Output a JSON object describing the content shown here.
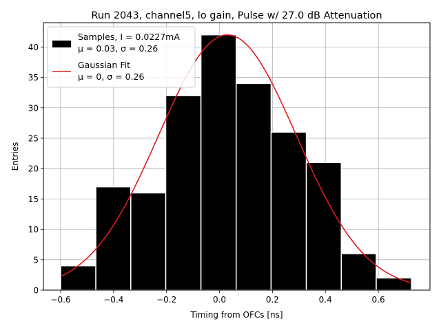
{
  "chart_data": {
    "type": "bar",
    "title": "Run 2043, channel5, lo gain, Pulse w/ 27.0 dB Attenuation",
    "xlabel": "Timing from OFCs [ns]",
    "ylabel": "Entries",
    "xlim": [
      -0.665,
      0.795
    ],
    "ylim": [
      0,
      44
    ],
    "grid": true,
    "legend_position": "top-left",
    "x_ticks": [
      -0.6,
      -0.4,
      -0.2,
      0.0,
      0.2,
      0.4,
      0.6
    ],
    "x_tick_labels": [
      "−0.6",
      "−0.4",
      "−0.2",
      "0.0",
      "0.2",
      "0.4",
      "0.6"
    ],
    "y_ticks": [
      0,
      5,
      10,
      15,
      20,
      25,
      30,
      35,
      40
    ],
    "y_tick_labels": [
      "0",
      "5",
      "10",
      "15",
      "20",
      "25",
      "30",
      "35",
      "40"
    ],
    "bin_edges": [
      -0.6,
      -0.467,
      -0.335,
      -0.203,
      -0.07,
      0.063,
      0.195,
      0.328,
      0.46,
      0.592,
      0.725
    ],
    "values": [
      4,
      17,
      16,
      32,
      42,
      34,
      26,
      21,
      6,
      2
    ],
    "series": [
      {
        "name": "Samples, I = 0.0227mA",
        "name_line2": "μ = 0.03, σ = 0.26",
        "kind": "histogram",
        "color": "#000000",
        "edge_color": "#ffffff"
      },
      {
        "name": "Gaussian Fit",
        "name_line2": "μ = 0, σ = 0.26",
        "kind": "line",
        "color": "#e41a1c",
        "amplitude": 42,
        "mean": 0.03,
        "sigma": 0.26,
        "x_range": [
          -0.6,
          0.725
        ]
      }
    ]
  }
}
